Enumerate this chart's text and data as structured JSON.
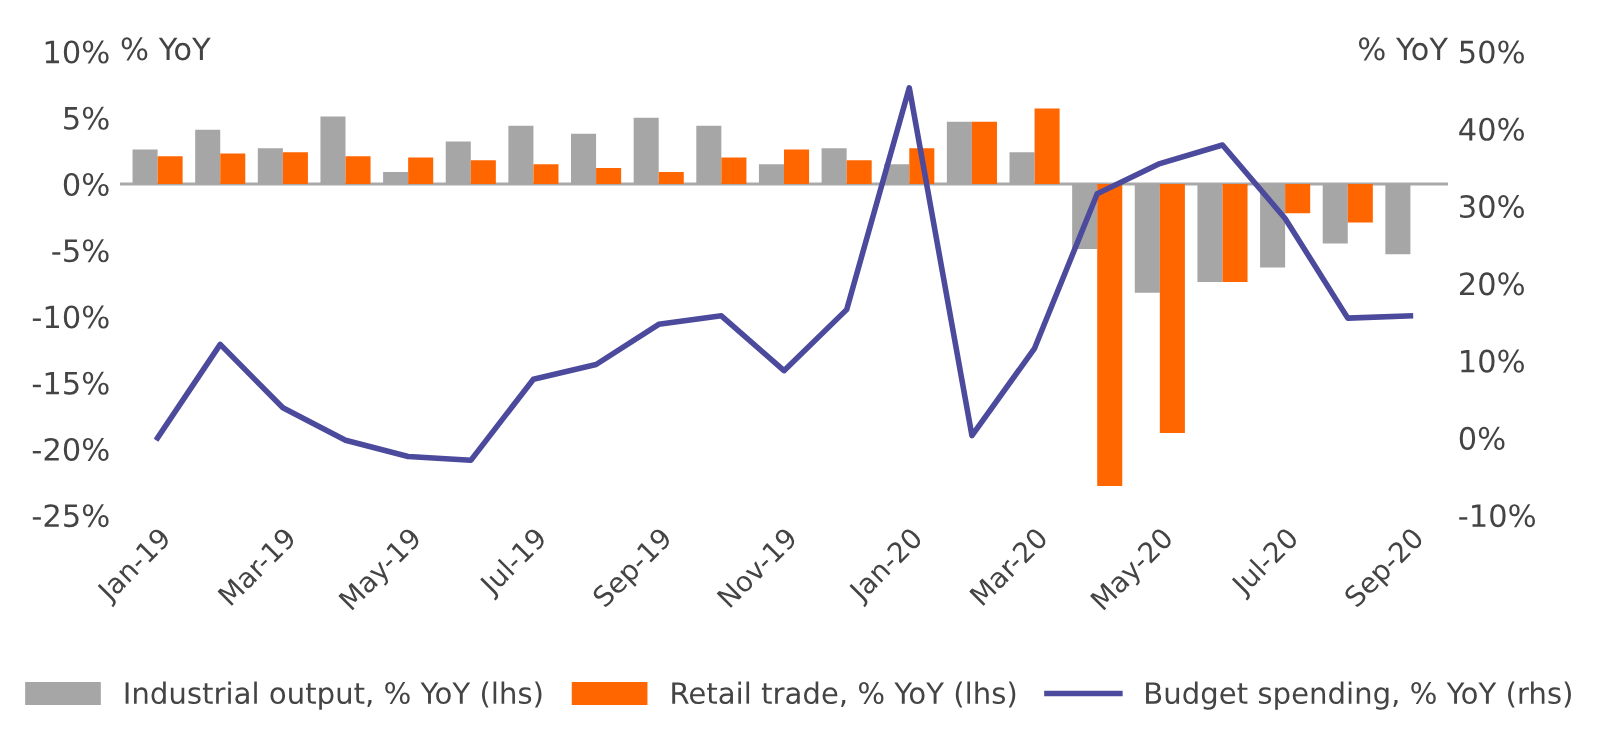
{
  "chart_data": {
    "type": "bar",
    "categories": [
      "Jan-19",
      null,
      "Mar-19",
      null,
      "May-19",
      null,
      "Jul-19",
      null,
      "Sep-19",
      null,
      "Nov-19",
      null,
      "Jan-20",
      null,
      "Mar-20",
      null,
      "May-20",
      null,
      "Jul-20",
      null,
      "Sep-20"
    ],
    "series": [
      {
        "name": "Industrial output, % YoY (lhs)",
        "color": "#a6a6a6",
        "values": [
          2.6,
          4.1,
          2.7,
          5.1,
          0.9,
          3.2,
          4.4,
          3.8,
          5.0,
          4.4,
          1.5,
          2.7,
          1.5,
          4.7,
          2.4,
          -4.9,
          -8.2,
          -7.4,
          -6.3,
          -4.5,
          -5.3
        ]
      },
      {
        "name": "Retail trade, % YoY (lhs)",
        "color": "#ff6600",
        "values": [
          2.1,
          2.3,
          2.4,
          2.1,
          2.0,
          1.8,
          1.5,
          1.2,
          0.9,
          2.0,
          2.6,
          1.8,
          2.7,
          4.7,
          5.7,
          -22.8,
          -18.8,
          -7.4,
          -2.2,
          -2.9,
          null
        ]
      },
      {
        "name": "Budget spending, % YoY (rhs)",
        "color": "#4b4a9c",
        "type": "line",
        "axis": "y2",
        "values": [
          0.0,
          12.1,
          3.9,
          -0.3,
          -2.4,
          -2.9,
          7.6,
          9.5,
          14.7,
          15.8,
          8.7,
          16.6,
          45.3,
          0.3,
          11.6,
          31.6,
          35.5,
          37.9,
          28.4,
          15.5,
          15.8
        ]
      }
    ],
    "ylabel": "% YoY",
    "y2label": "% YoY",
    "ylim": [
      -25,
      10
    ],
    "yticks": [
      {
        "value": -25,
        "label": "-25%"
      },
      {
        "value": -20,
        "label": "-20%"
      },
      {
        "value": -15,
        "label": "-15%"
      },
      {
        "value": -10,
        "label": "-10%"
      },
      {
        "value": -5,
        "label": "-5%"
      },
      {
        "value": 0,
        "label": "0%"
      },
      {
        "value": 5,
        "label": "5%"
      },
      {
        "value": 10,
        "label": "10%"
      }
    ],
    "y2lim": [
      -10,
      50
    ],
    "y2ticks": [
      {
        "value": -10,
        "label": "-10%"
      },
      {
        "value": 0,
        "label": "0%"
      },
      {
        "value": 10,
        "label": "10%"
      },
      {
        "value": 20,
        "label": "20%"
      },
      {
        "value": 30,
        "label": "30%"
      },
      {
        "value": 40,
        "label": "40%"
      },
      {
        "value": 50,
        "label": "50%"
      }
    ],
    "ref_lines": [
      {
        "axis": "y",
        "value": 0,
        "color": "#aaaaaa"
      }
    ],
    "legend": "bottom"
  }
}
